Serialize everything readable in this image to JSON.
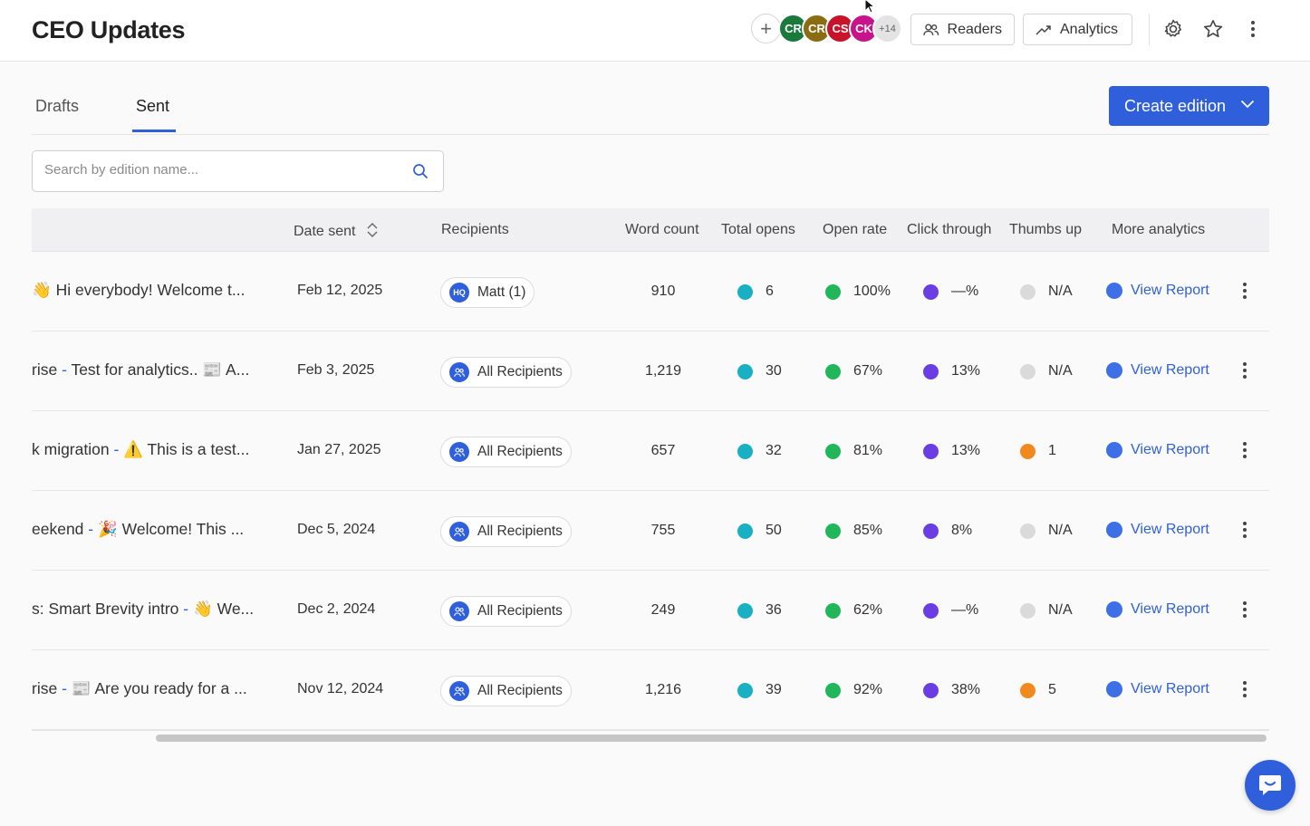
{
  "header": {
    "title": "CEO Updates",
    "avatars": [
      {
        "initials": "CR",
        "color": "#1a7a3c"
      },
      {
        "initials": "CR",
        "color": "#8a6d12"
      },
      {
        "initials": "CS",
        "color": "#c8142a"
      },
      {
        "initials": "CK",
        "color": "#c8148a"
      }
    ],
    "more_avatars": "+14",
    "readers_label": "Readers",
    "analytics_label": "Analytics"
  },
  "tabs": [
    {
      "label": "Drafts",
      "active": false
    },
    {
      "label": "Sent",
      "active": true
    }
  ],
  "create_button": "Create edition",
  "search": {
    "placeholder": "Search by edition name..."
  },
  "table": {
    "columns": [
      "Date sent",
      "Recipients",
      "Word count",
      "Total opens",
      "Open rate",
      "Click through",
      "Thumbs up",
      "More analytics"
    ],
    "rows": [
      {
        "title_a": "",
        "title_b": "👋 Hi everybody! Welcome t...",
        "date": "Feb 12, 2025",
        "recipient": "Matt (1)",
        "recipient_icon": "HQ",
        "words": "910",
        "opens": "6",
        "rate": "100%",
        "ctr": "—%",
        "thumbs": "N/A",
        "thumbs_status": "grey",
        "report": "View Report"
      },
      {
        "title_a": "rise",
        "title_b": "Test for analytics.. 📰 A...",
        "date": "Feb 3, 2025",
        "recipient": "All Recipients",
        "recipient_icon": "",
        "words": "1,219",
        "opens": "30",
        "rate": "67%",
        "ctr": "13%",
        "thumbs": "N/A",
        "thumbs_status": "grey",
        "report": "View Report"
      },
      {
        "title_a": "k migration",
        "title_b": "⚠️ This is a test...",
        "date": "Jan 27, 2025",
        "recipient": "All Recipients",
        "recipient_icon": "",
        "words": "657",
        "opens": "32",
        "rate": "81%",
        "ctr": "13%",
        "thumbs": "1",
        "thumbs_status": "orange",
        "report": "View Report"
      },
      {
        "title_a": "eekend",
        "title_b": "🎉 Welcome! This ...",
        "date": "Dec 5, 2024",
        "recipient": "All Recipients",
        "recipient_icon": "",
        "words": "755",
        "opens": "50",
        "rate": "85%",
        "ctr": "8%",
        "thumbs": "N/A",
        "thumbs_status": "grey",
        "report": "View Report"
      },
      {
        "title_a": "s: Smart Brevity intro",
        "title_b": "👋 We...",
        "date": "Dec 2, 2024",
        "recipient": "All Recipients",
        "recipient_icon": "",
        "words": "249",
        "opens": "36",
        "rate": "62%",
        "ctr": "—%",
        "thumbs": "N/A",
        "thumbs_status": "grey",
        "report": "View Report"
      },
      {
        "title_a": "rise",
        "title_b": "📰 Are you ready for a ...",
        "date": "Nov 12, 2024",
        "recipient": "All Recipients",
        "recipient_icon": "",
        "words": "1,216",
        "opens": "39",
        "rate": "92%",
        "ctr": "38%",
        "thumbs": "5",
        "thumbs_status": "orange",
        "report": "View Report"
      }
    ]
  }
}
